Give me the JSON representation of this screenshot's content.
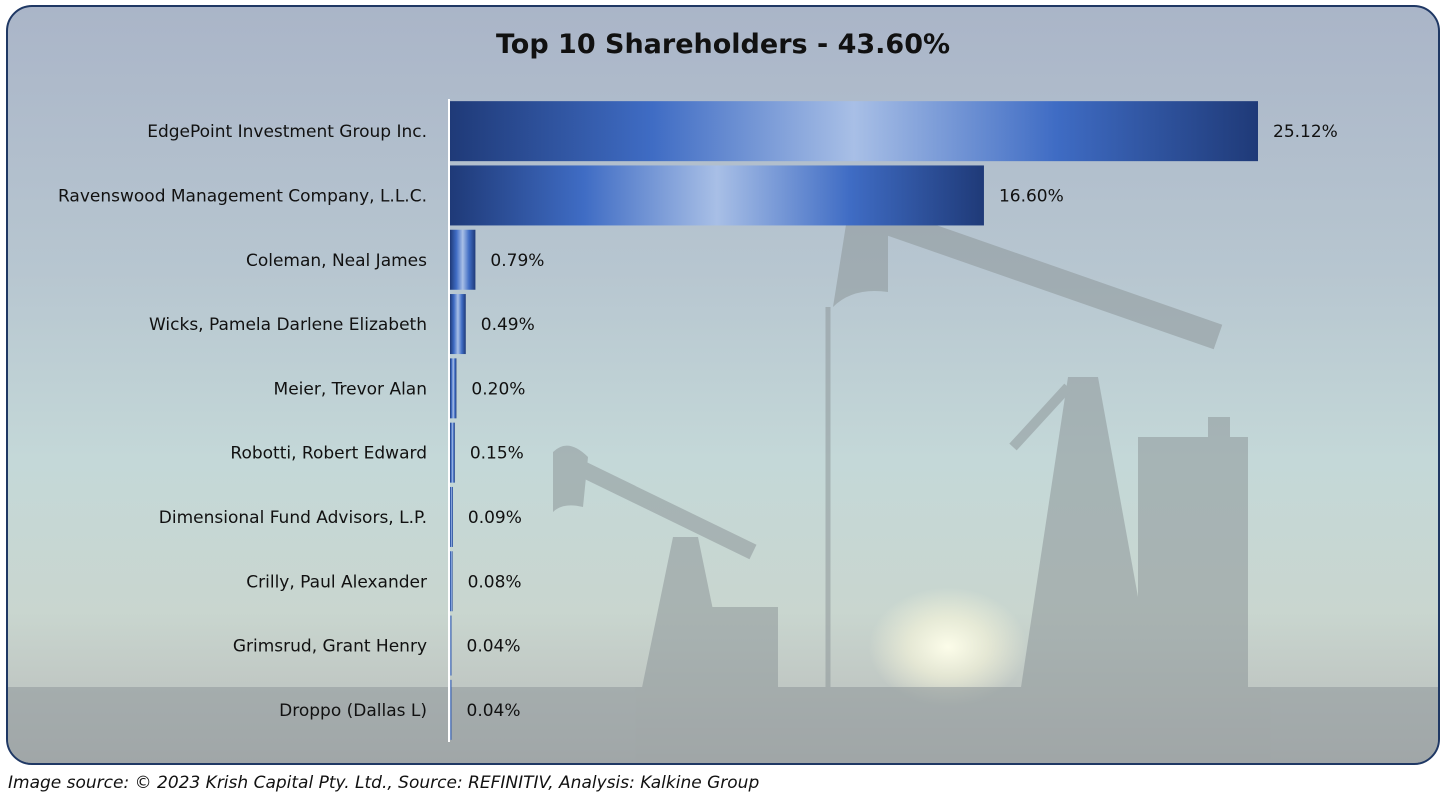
{
  "chart_data": {
    "type": "bar",
    "orientation": "horizontal",
    "title": "Top 10 Shareholders - 43.60%",
    "categories": [
      "EdgePoint Investment Group Inc.",
      "Ravenswood Management Company, L.L.C.",
      "Coleman, Neal James",
      "Wicks, Pamela Darlene Elizabeth",
      "Meier, Trevor Alan",
      "Robotti, Robert Edward",
      "Dimensional Fund Advisors, L.P.",
      "Crilly, Paul Alexander",
      "Grimsrud, Grant Henry",
      "Droppo (Dallas L)"
    ],
    "values": [
      25.12,
      16.6,
      0.79,
      0.49,
      0.2,
      0.15,
      0.09,
      0.08,
      0.04,
      0.04
    ],
    "data_labels": [
      "25.12%",
      "16.60%",
      "0.79%",
      "0.49%",
      "0.20%",
      "0.15%",
      "0.09%",
      "0.08%",
      "0.04%",
      "0.04%"
    ],
    "xlabel": "",
    "ylabel": "",
    "xlim": [
      0,
      25.12
    ],
    "grid": false,
    "legend": "none",
    "bar_color": "#2e4f94",
    "bar_highlight": "#a8bfe6"
  },
  "footer": "Image source: © 2023 Krish Capital Pty. Ltd., Source: REFINITIV, Analysis: Kalkine Group",
  "background_icon": "oil-pumpjack-icon"
}
